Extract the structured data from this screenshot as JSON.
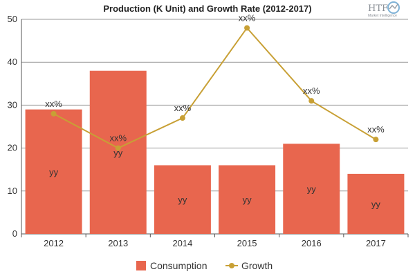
{
  "chart_data": {
    "type": "bar",
    "title": "Production (K Unit) and Growth Rate (2012-2017)",
    "categories": [
      "2012",
      "2013",
      "2014",
      "2015",
      "2016",
      "2017"
    ],
    "ylim": [
      0,
      50
    ],
    "yticks": [
      0,
      10,
      20,
      30,
      40,
      50
    ],
    "grid": true,
    "legend_position": "bottom",
    "series": [
      {
        "name": "Consumption",
        "type": "bar",
        "color": "#e8664e",
        "values": [
          29,
          38,
          16,
          16,
          21,
          14
        ],
        "data_labels": [
          "yy",
          "yy",
          "yy",
          "yy",
          "yy",
          "yy"
        ]
      },
      {
        "name": "Growth",
        "type": "line",
        "color": "#c8a035",
        "values": [
          28,
          20,
          27,
          48,
          31,
          22
        ],
        "data_labels": [
          "xx%",
          "xx%",
          "xx%",
          "xx%",
          "xx%",
          "xx%"
        ]
      }
    ]
  },
  "logo": {
    "text": "HTF",
    "subtext": "Market Intelligence"
  }
}
